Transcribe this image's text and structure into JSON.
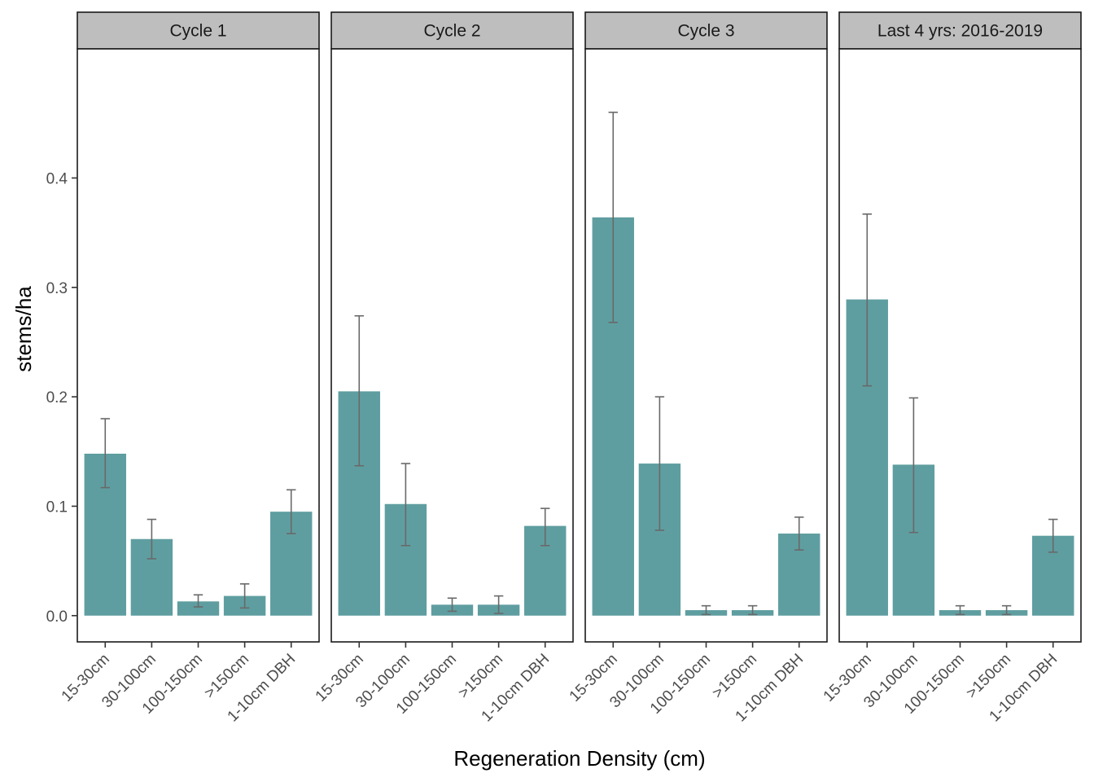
{
  "chart_data": {
    "type": "bar",
    "facets": [
      "Cycle 1",
      "Cycle 2",
      "Cycle 3",
      "Last 4 yrs: 2016-2019"
    ],
    "categories": [
      "15-30cm",
      "30-100cm",
      "100-150cm",
      ">150cm",
      "1-10cm DBH"
    ],
    "panels": [
      {
        "title": "Cycle 1",
        "values": [
          0.148,
          0.07,
          0.013,
          0.018,
          0.095
        ],
        "lower": [
          0.117,
          0.052,
          0.008,
          0.007,
          0.075
        ],
        "upper": [
          0.18,
          0.088,
          0.019,
          0.029,
          0.115
        ]
      },
      {
        "title": "Cycle 2",
        "values": [
          0.205,
          0.102,
          0.01,
          0.01,
          0.082
        ],
        "lower": [
          0.137,
          0.064,
          0.004,
          0.002,
          0.064
        ],
        "upper": [
          0.274,
          0.139,
          0.016,
          0.018,
          0.098
        ]
      },
      {
        "title": "Cycle 3",
        "values": [
          0.364,
          0.139,
          0.005,
          0.005,
          0.075
        ],
        "lower": [
          0.268,
          0.078,
          0.001,
          0.001,
          0.06
        ],
        "upper": [
          0.46,
          0.2,
          0.009,
          0.009,
          0.09
        ]
      },
      {
        "title": "Last 4 yrs: 2016-2019",
        "values": [
          0.289,
          0.138,
          0.005,
          0.005,
          0.073
        ],
        "lower": [
          0.21,
          0.076,
          0.001,
          0.001,
          0.058
        ],
        "upper": [
          0.367,
          0.199,
          0.009,
          0.009,
          0.088
        ]
      }
    ],
    "xlabel": "Regeneration Density (cm)",
    "ylabel": "stems/ha",
    "ylim": [
      -0.024,
      0.518
    ],
    "yticks": [
      0.0,
      0.1,
      0.2,
      0.3,
      0.4
    ],
    "ytick_labels": [
      "0.0",
      "0.1",
      "0.2",
      "0.3",
      "0.4"
    ],
    "grid": false,
    "legend": "none",
    "colors": {
      "bar": "#5f9ea0",
      "errorbar": "#696969",
      "strip_fill": "#bebebe",
      "panel_border": "#1a1a1a"
    }
  }
}
